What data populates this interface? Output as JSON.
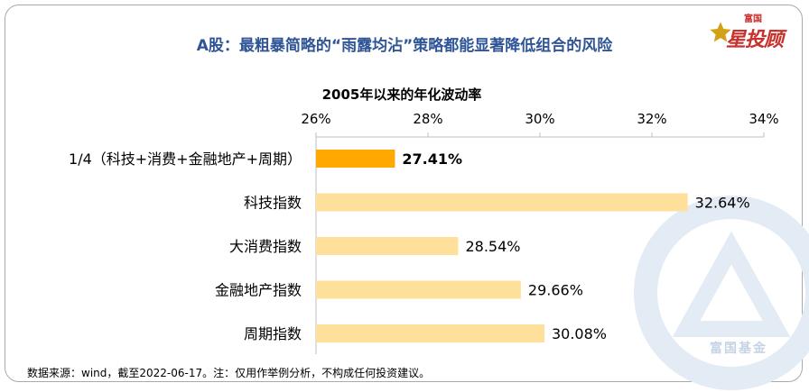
{
  "brand": {
    "top": "富国",
    "main": "星投顾"
  },
  "watermark": "富国基金",
  "source_note": "数据来源：wind，截至2022-06-17。注：仅用作举例分析，不构成任何投资建议。",
  "chart_data": {
    "type": "bar",
    "orientation": "horizontal",
    "title": "A股：最粗暴简略的“雨露均沾”策略都能显著降低组合的风险",
    "axis_title": "2005年以来的年化波动率",
    "categories": [
      "1/4（科技+消费+金融地产+周期）",
      "科技指数",
      "大消费指数",
      "金融地产指数",
      "周期指数"
    ],
    "values": [
      27.41,
      32.64,
      28.54,
      29.66,
      30.08
    ],
    "value_labels": [
      "27.41%",
      "32.64%",
      "28.54%",
      "29.66%",
      "30.08%"
    ],
    "xlim": [
      26,
      34
    ],
    "xticks": [
      26,
      28,
      30,
      32,
      34
    ],
    "xtick_labels": [
      "26%",
      "28%",
      "30%",
      "32%",
      "34%"
    ],
    "axis_position": "top",
    "grid": false,
    "highlight_index": 0,
    "colors": {
      "highlight": "#ffa800",
      "bar": "#ffe09a",
      "axis": "#bfbfbf",
      "title": "#2f5597",
      "brand": "#c9302c"
    }
  }
}
